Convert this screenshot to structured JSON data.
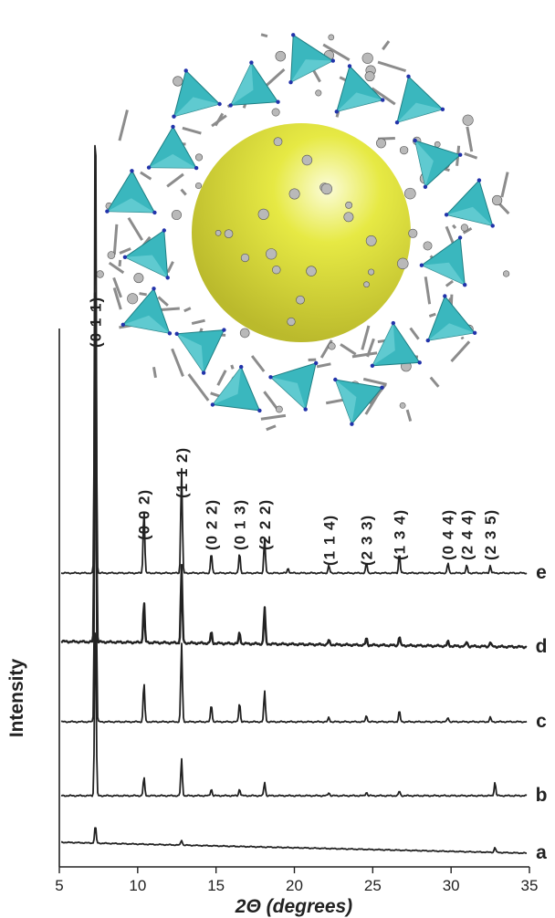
{
  "chart_data": {
    "type": "line",
    "xlabel": "2Θ (degrees)",
    "ylabel": "Intensity",
    "xlim": [
      5,
      35
    ],
    "xticks": [
      5,
      10,
      15,
      20,
      25,
      30,
      35
    ],
    "y_ticks_shown": false,
    "grid": false,
    "legend": "none",
    "line_color": "#222222",
    "peak_labels": [
      {
        "text": "(0 1 1)",
        "x": 7.3
      },
      {
        "text": "(0 0 2)",
        "x": 10.4
      },
      {
        "text": "(1 1 2)",
        "x": 12.8
      },
      {
        "text": "(0 2 2)",
        "x": 14.7
      },
      {
        "text": "(0 1 3)",
        "x": 16.5
      },
      {
        "text": "(2 2 2)",
        "x": 18.1
      },
      {
        "text": "(1 1 4)",
        "x": 22.2
      },
      {
        "text": "(2 3 3)",
        "x": 24.6
      },
      {
        "text": "(1 3 4)",
        "x": 26.7
      },
      {
        "text": "(0 4 4)",
        "x": 29.8
      },
      {
        "text": "(2 4 4)",
        "x": 31.0
      },
      {
        "text": "(2 3 5)",
        "x": 32.5
      }
    ],
    "series": [
      {
        "name": "e",
        "peaks": [
          {
            "x": 7.3,
            "h": 100
          },
          {
            "x": 10.4,
            "h": 13
          },
          {
            "x": 12.8,
            "h": 21
          },
          {
            "x": 14.7,
            "h": 4
          },
          {
            "x": 16.5,
            "h": 4
          },
          {
            "x": 18.1,
            "h": 7
          },
          {
            "x": 19.6,
            "h": 1
          },
          {
            "x": 22.2,
            "h": 1.5
          },
          {
            "x": 24.6,
            "h": 2
          },
          {
            "x": 26.7,
            "h": 4
          },
          {
            "x": 29.8,
            "h": 2
          },
          {
            "x": 31.0,
            "h": 1.5
          },
          {
            "x": 32.5,
            "h": 1.5
          }
        ]
      },
      {
        "name": "d",
        "peaks": [
          {
            "x": 7.3,
            "h": 90
          },
          {
            "x": 10.4,
            "h": 9
          },
          {
            "x": 12.8,
            "h": 17
          },
          {
            "x": 14.7,
            "h": 2.5
          },
          {
            "x": 16.5,
            "h": 2.5
          },
          {
            "x": 18.1,
            "h": 8
          },
          {
            "x": 22.2,
            "h": 1
          },
          {
            "x": 24.6,
            "h": 1.5
          },
          {
            "x": 26.7,
            "h": 2
          },
          {
            "x": 29.8,
            "h": 1
          },
          {
            "x": 31.0,
            "h": 1
          },
          {
            "x": 32.5,
            "h": 1
          }
        ]
      },
      {
        "name": "c",
        "peaks": [
          {
            "x": 7.3,
            "h": 87
          },
          {
            "x": 10.4,
            "h": 9
          },
          {
            "x": 12.8,
            "h": 18
          },
          {
            "x": 14.7,
            "h": 4
          },
          {
            "x": 16.5,
            "h": 4.5
          },
          {
            "x": 18.1,
            "h": 7
          },
          {
            "x": 22.2,
            "h": 1
          },
          {
            "x": 24.6,
            "h": 1.5
          },
          {
            "x": 26.7,
            "h": 2.5
          },
          {
            "x": 29.8,
            "h": 1
          },
          {
            "x": 32.5,
            "h": 1
          }
        ]
      },
      {
        "name": "b",
        "peaks": [
          {
            "x": 7.3,
            "h": 42
          },
          {
            "x": 10.4,
            "h": 4
          },
          {
            "x": 12.8,
            "h": 8
          },
          {
            "x": 14.7,
            "h": 1.5
          },
          {
            "x": 16.5,
            "h": 1.5
          },
          {
            "x": 18.1,
            "h": 3
          },
          {
            "x": 22.2,
            "h": 0.7
          },
          {
            "x": 24.6,
            "h": 0.8
          },
          {
            "x": 26.7,
            "h": 1
          },
          {
            "x": 32.8,
            "h": 3
          }
        ]
      },
      {
        "name": "a",
        "peaks": [
          {
            "x": 7.3,
            "h": 3.5
          },
          {
            "x": 12.8,
            "h": 1
          },
          {
            "x": 32.8,
            "h": 1
          }
        ]
      }
    ]
  },
  "inset": {
    "sphere_color": "#e5e83a",
    "polyhedron_color": "#3ab7be",
    "atom_color": "#b9b9b9",
    "node_color": "#2233aa"
  }
}
